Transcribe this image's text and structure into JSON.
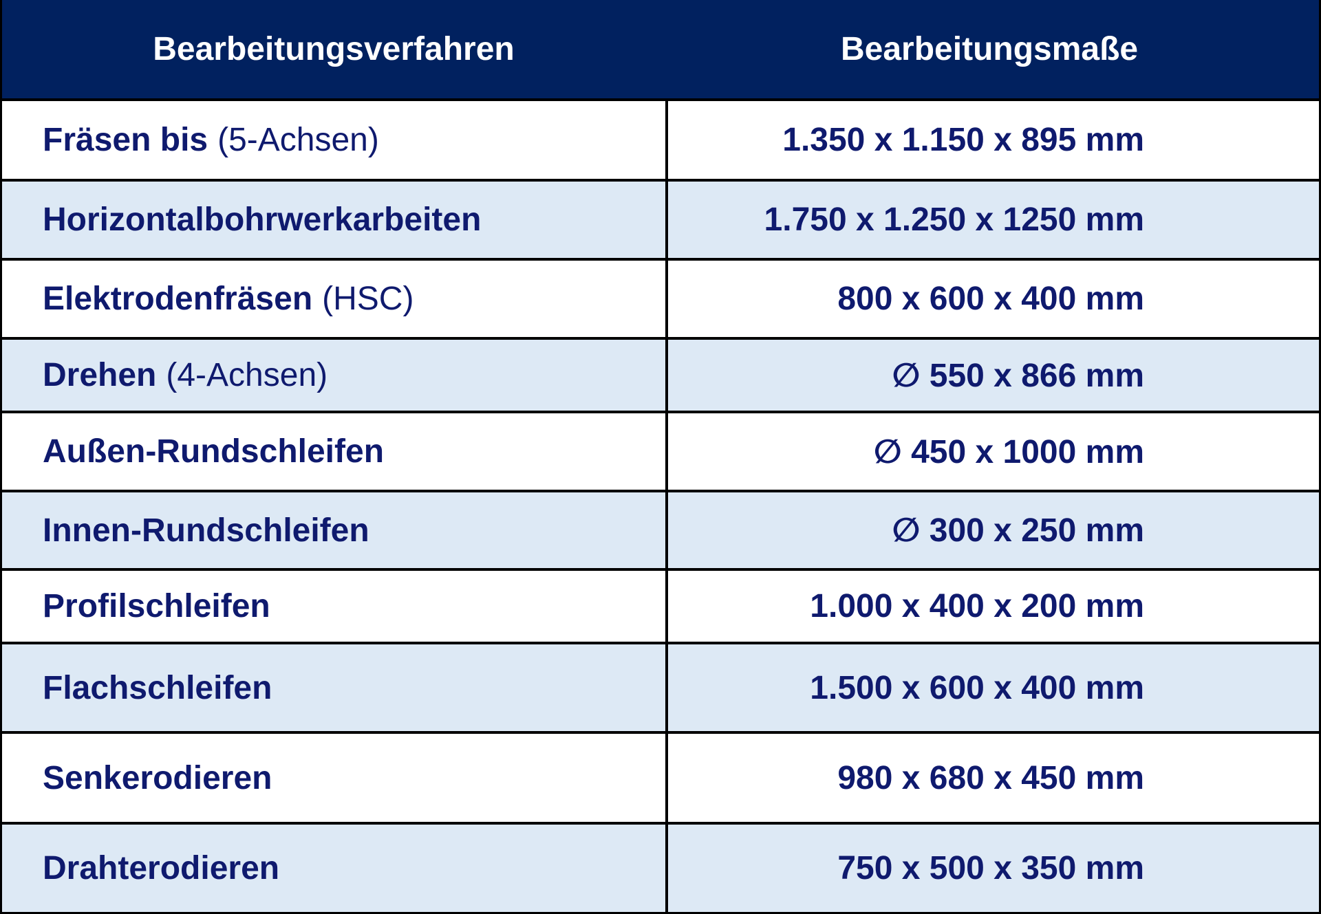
{
  "header": {
    "col1": "Bearbeitungsverfahren",
    "col2": "Bearbeitungsmaße"
  },
  "rows": [
    {
      "name": "Fräsen bis",
      "note": "(5-Achsen)",
      "dim": "1.350 x 1.150 x 895 mm"
    },
    {
      "name": "Horizontalbohrwerkarbeiten",
      "note": "",
      "dim": "1.750 x 1.250 x 1250 mm"
    },
    {
      "name": "Elektrodenfräsen",
      "note": "(HSC)",
      "dim": "800 x 600 x 400 mm"
    },
    {
      "name": "Drehen",
      "note": "(4-Achsen)",
      "dim": "∅ 550 x 866 mm"
    },
    {
      "name": "Außen-Rundschleifen",
      "note": "",
      "dim": "∅ 450 x 1000 mm"
    },
    {
      "name": "Innen-Rundschleifen",
      "note": "",
      "dim": "∅ 300 x 250 mm"
    },
    {
      "name": "Profilschleifen",
      "note": "",
      "dim": "1.000 x 400 x 200 mm"
    },
    {
      "name": "Flachschleifen",
      "note": "",
      "dim": "1.500 x 600 x 400 mm"
    },
    {
      "name": "Senkerodieren",
      "note": "",
      "dim": "980 x 680 x 450 mm"
    },
    {
      "name": "Drahterodieren",
      "note": "",
      "dim": "750 x 500 x 350 mm"
    }
  ],
  "colors": {
    "header_bg": "#01215f",
    "header_text": "#ffffff",
    "body_text": "#0f1a6e",
    "row_alt_bg": "#dde9f5"
  }
}
